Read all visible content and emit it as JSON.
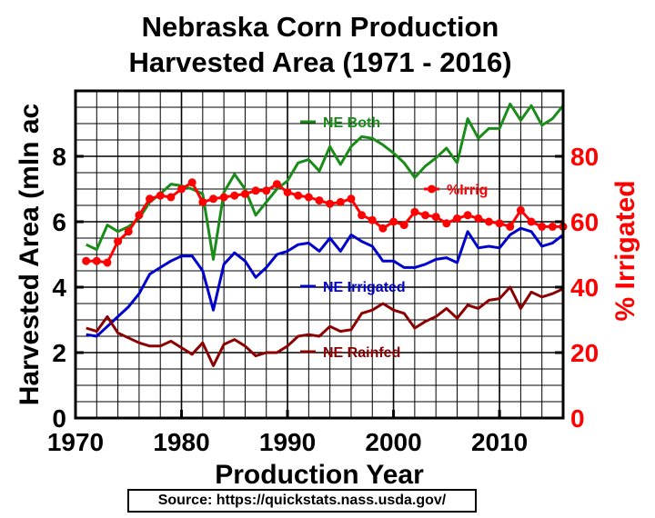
{
  "chart_data": {
    "type": "line",
    "title": "Nebraska Corn Production",
    "subtitle": "Harvested Area (1971 - 2016)",
    "xlabel": "Production Year",
    "ylabel": "Harvested Area (mln ac",
    "y2label": "% Irrigated",
    "xlim": [
      1970,
      2016
    ],
    "ylim": [
      0,
      10
    ],
    "y2lim": [
      0,
      100
    ],
    "x_ticks": [
      "1970",
      "1980",
      "1990",
      "2000",
      "2010"
    ],
    "y_ticks": [
      "0",
      "2",
      "4",
      "6",
      "8"
    ],
    "y2_ticks": [
      "0",
      "20",
      "40",
      "60",
      "80"
    ],
    "grid": true,
    "x": [
      1971,
      1972,
      1973,
      1974,
      1975,
      1976,
      1977,
      1978,
      1979,
      1980,
      1981,
      1982,
      1983,
      1984,
      1985,
      1986,
      1987,
      1988,
      1989,
      1990,
      1991,
      1992,
      1993,
      1994,
      1995,
      1996,
      1997,
      1998,
      1999,
      2000,
      2001,
      2002,
      2003,
      2004,
      2005,
      2006,
      2007,
      2008,
      2009,
      2010,
      2011,
      2012,
      2013,
      2014,
      2015,
      2016
    ],
    "series": [
      {
        "name": "NE Both",
        "axis": "left",
        "color": "#1a8c1a",
        "values": [
          5.3,
          5.15,
          5.9,
          5.7,
          5.85,
          6.1,
          6.6,
          6.85,
          7.15,
          7.1,
          7.0,
          6.85,
          4.85,
          6.9,
          7.45,
          7.0,
          6.2,
          6.6,
          7.0,
          7.25,
          7.8,
          7.9,
          7.55,
          8.3,
          7.75,
          8.3,
          8.6,
          8.55,
          8.35,
          8.1,
          7.8,
          7.35,
          7.7,
          7.95,
          8.25,
          7.8,
          9.15,
          8.55,
          8.85,
          8.85,
          9.6,
          9.1,
          9.55,
          8.95,
          9.15,
          9.55
        ]
      },
      {
        "name": "NE Irrigated",
        "axis": "left",
        "color": "#0000cc",
        "values": [
          2.55,
          2.5,
          2.8,
          3.1,
          3.4,
          3.8,
          4.4,
          4.6,
          4.8,
          4.95,
          4.95,
          4.5,
          3.3,
          4.7,
          5.05,
          4.8,
          4.3,
          4.6,
          5.0,
          5.1,
          5.3,
          5.35,
          5.1,
          5.5,
          5.1,
          5.6,
          5.4,
          5.25,
          4.8,
          4.8,
          4.6,
          4.6,
          4.7,
          4.85,
          4.9,
          4.75,
          5.7,
          5.2,
          5.25,
          5.2,
          5.6,
          5.8,
          5.7,
          5.25,
          5.35,
          5.6
        ]
      },
      {
        "name": "NE Rainfed",
        "axis": "left",
        "color": "#8b0000",
        "values": [
          2.75,
          2.65,
          3.1,
          2.6,
          2.45,
          2.3,
          2.2,
          2.2,
          2.35,
          2.15,
          1.95,
          2.3,
          1.6,
          2.25,
          2.4,
          2.2,
          1.9,
          2.0,
          2.0,
          2.2,
          2.5,
          2.55,
          2.5,
          2.8,
          2.65,
          2.7,
          3.2,
          3.3,
          3.5,
          3.3,
          3.2,
          2.75,
          2.95,
          3.1,
          3.35,
          3.05,
          3.45,
          3.35,
          3.6,
          3.65,
          4.0,
          3.35,
          3.85,
          3.7,
          3.8,
          3.95
        ]
      },
      {
        "name": "%Irrig",
        "axis": "right",
        "color": "#ff0000",
        "marker": "circle",
        "values": [
          48,
          48,
          47.5,
          54,
          57,
          62,
          67,
          68,
          67.5,
          70,
          72,
          66,
          67,
          67.5,
          68,
          68.5,
          69.5,
          69.5,
          71.5,
          69,
          68,
          67.5,
          66.5,
          65.5,
          66,
          67,
          62,
          60.5,
          58,
          60,
          59,
          63,
          62,
          61.5,
          59.5,
          61,
          62,
          61,
          60,
          59.5,
          58.5,
          63.5,
          60,
          58.5,
          58.5,
          58.5
        ]
      }
    ],
    "source": "Source: https://quickstats.nass.usda.gov/"
  }
}
